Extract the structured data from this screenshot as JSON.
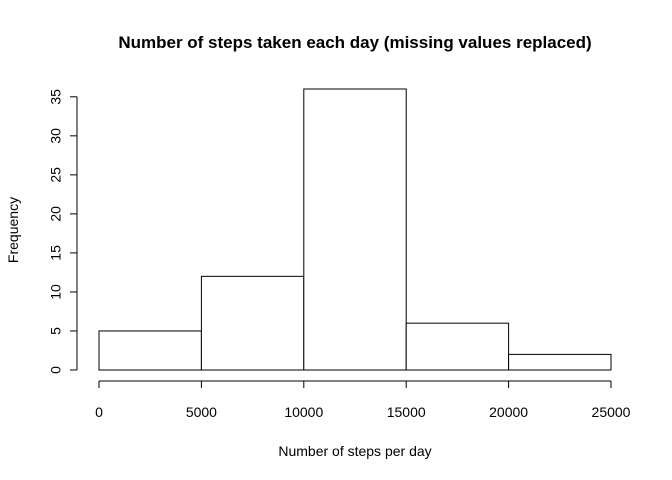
{
  "chart_data": {
    "type": "bar",
    "title": "Number of steps taken each day (missing values replaced)",
    "xlabel": "Number of steps per day",
    "ylabel": "Frequency",
    "bins": [
      {
        "start": 0,
        "end": 5000,
        "count": 5
      },
      {
        "start": 5000,
        "end": 10000,
        "count": 12
      },
      {
        "start": 10000,
        "end": 15000,
        "count": 36
      },
      {
        "start": 15000,
        "end": 20000,
        "count": 6
      },
      {
        "start": 20000,
        "end": 25000,
        "count": 2
      }
    ],
    "xlim": [
      0,
      25000
    ],
    "ylim": [
      0,
      36
    ],
    "xticks": [
      "0",
      "5000",
      "10000",
      "15000",
      "20000",
      "25000"
    ],
    "yticks": [
      "0",
      "5",
      "10",
      "15",
      "20",
      "25",
      "30",
      "35"
    ],
    "grid": false,
    "legend": "none"
  }
}
